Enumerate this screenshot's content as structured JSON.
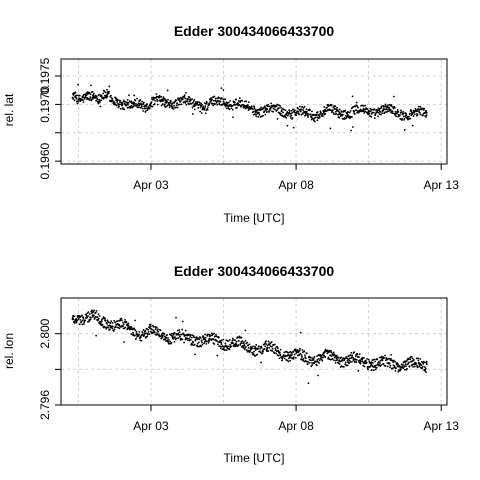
{
  "chart_data": [
    {
      "type": "scatter",
      "title": "Edder 300434066433700",
      "xlabel": "Time [UTC]",
      "ylabel": "rel. lat",
      "x_ticks": [
        "Apr 03",
        "Apr 08",
        "Apr 13"
      ],
      "x_tick_days": [
        3,
        8,
        13
      ],
      "xlim_days": [
        -0.1,
        13.2
      ],
      "y_ticks": [
        0.196,
        0.1965,
        0.197,
        0.1975
      ],
      "y_tick_labels": [
        "0.1960",
        "",
        "0.1970",
        "0.1975"
      ],
      "ylim": [
        0.19595,
        0.1978
      ],
      "grid": true,
      "series": [
        {
          "x": [
            0.3,
            0.5,
            0.8,
            1.0,
            1.2,
            1.5,
            1.8,
            2.0,
            2.2,
            2.4,
            2.6,
            2.8,
            3.0,
            3.5,
            4.0,
            4.5,
            5.0,
            5.5,
            6.0,
            6.3,
            6.6,
            7.0,
            7.5,
            8.0,
            8.5,
            9.0,
            9.5,
            10.0,
            10.5,
            11.0,
            11.5,
            12.0,
            12.5
          ],
          "y": [
            0.19712,
            0.19708,
            0.1972,
            0.19715,
            0.19705,
            0.19718,
            0.1971,
            0.19698,
            0.19694,
            0.197,
            0.19706,
            0.19698,
            0.19702,
            0.19703,
            0.19705,
            0.197,
            0.197,
            0.19705,
            0.19702,
            0.19695,
            0.1969,
            0.19692,
            0.19688,
            0.19685,
            0.19682,
            0.19688,
            0.19685,
            0.19688,
            0.19688,
            0.1969,
            0.19686,
            0.19683,
            0.19685
          ]
        }
      ]
    },
    {
      "type": "scatter",
      "title": "Edder 300434066433700",
      "xlabel": "Time [UTC]",
      "ylabel": "rel. lon",
      "x_ticks": [
        "Apr 03",
        "Apr 08",
        "Apr 13"
      ],
      "x_tick_days": [
        3,
        8,
        13
      ],
      "xlim_days": [
        -0.1,
        13.2
      ],
      "y_ticks": [
        2.796,
        2.798,
        2.8
      ],
      "y_tick_labels": [
        "2.796",
        "",
        "2.800"
      ],
      "ylim": [
        2.796,
        2.802
      ],
      "grid": true,
      "series": [
        {
          "x": [
            0.3,
            0.5,
            0.8,
            1.0,
            1.3,
            1.6,
            1.9,
            2.2,
            2.5,
            2.8,
            3.0,
            3.4,
            3.8,
            4.2,
            4.6,
            5.0,
            5.4,
            5.8,
            6.2,
            6.6,
            7.0,
            7.4,
            7.8,
            8.2,
            8.6,
            9.0,
            9.4,
            9.8,
            10.2,
            10.6,
            11.0,
            11.5,
            12.0,
            12.5
          ],
          "y": [
            2.8008,
            2.801,
            2.8009,
            2.80095,
            2.8007,
            2.8006,
            2.8005,
            2.8003,
            2.8001,
            2.8,
            2.8001,
            2.7999,
            2.7998,
            2.79975,
            2.7997,
            2.7996,
            2.79955,
            2.7995,
            2.7993,
            2.7992,
            2.79915,
            2.799,
            2.7988,
            2.7987,
            2.7986,
            2.7987,
            2.7986,
            2.79855,
            2.7985,
            2.7984,
            2.7983,
            2.7983,
            2.79825,
            2.7983
          ]
        }
      ]
    }
  ]
}
